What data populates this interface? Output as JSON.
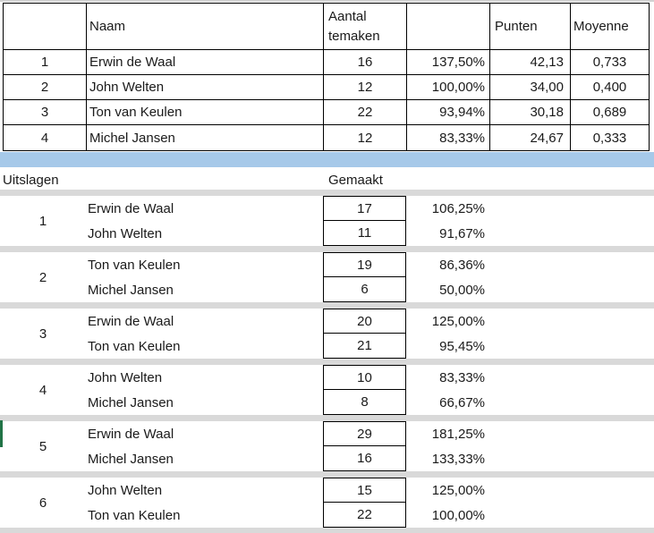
{
  "standings": {
    "headers": {
      "pos": "",
      "naam": "Naam",
      "aantal_line1": "Aantal",
      "aantal_line2": "temaken",
      "pct": "",
      "punten": "Punten",
      "moyenne": "Moyenne"
    },
    "rows": [
      {
        "pos": "1",
        "naam": "Erwin de Waal",
        "aantal": "16",
        "pct": "137,50%",
        "punten": "42,13",
        "moyenne": "0,733"
      },
      {
        "pos": "2",
        "naam": "John Welten",
        "aantal": "12",
        "pct": "100,00%",
        "punten": "34,00",
        "moyenne": "0,400"
      },
      {
        "pos": "3",
        "naam": "Ton van Keulen",
        "aantal": "22",
        "pct": "93,94%",
        "punten": "30,18",
        "moyenne": "0,689"
      },
      {
        "pos": "4",
        "naam": "Michel Jansen",
        "aantal": "12",
        "pct": "83,33%",
        "punten": "24,67",
        "moyenne": "0,333"
      }
    ]
  },
  "results": {
    "title": "Uitslagen",
    "made_label": "Gemaakt",
    "rounds": [
      {
        "nr": "1",
        "players": [
          {
            "name": "Erwin de Waal",
            "made": "17",
            "pct": "106,25%"
          },
          {
            "name": "John Welten",
            "made": "11",
            "pct": "91,67%"
          }
        ]
      },
      {
        "nr": "2",
        "players": [
          {
            "name": "Ton van Keulen",
            "made": "19",
            "pct": "86,36%"
          },
          {
            "name": "Michel Jansen",
            "made": "6",
            "pct": "50,00%"
          }
        ]
      },
      {
        "nr": "3",
        "players": [
          {
            "name": "Erwin de Waal",
            "made": "20",
            "pct": "125,00%"
          },
          {
            "name": "Ton van Keulen",
            "made": "21",
            "pct": "95,45%"
          }
        ]
      },
      {
        "nr": "4",
        "players": [
          {
            "name": "John Welten",
            "made": "10",
            "pct": "83,33%"
          },
          {
            "name": "Michel Jansen",
            "made": "8",
            "pct": "66,67%"
          }
        ]
      },
      {
        "nr": "5",
        "players": [
          {
            "name": "Erwin de Waal",
            "made": "29",
            "pct": "181,25%"
          },
          {
            "name": "Michel Jansen",
            "made": "16",
            "pct": "133,33%"
          }
        ]
      },
      {
        "nr": "6",
        "players": [
          {
            "name": "John Welten",
            "made": "15",
            "pct": "125,00%"
          },
          {
            "name": "Ton van Keulen",
            "made": "22",
            "pct": "100,00%"
          }
        ]
      }
    ]
  },
  "colors": {
    "band_blue": "#a6c9e9",
    "band_gray": "#d9d9d9",
    "selection_green": "#217346"
  }
}
